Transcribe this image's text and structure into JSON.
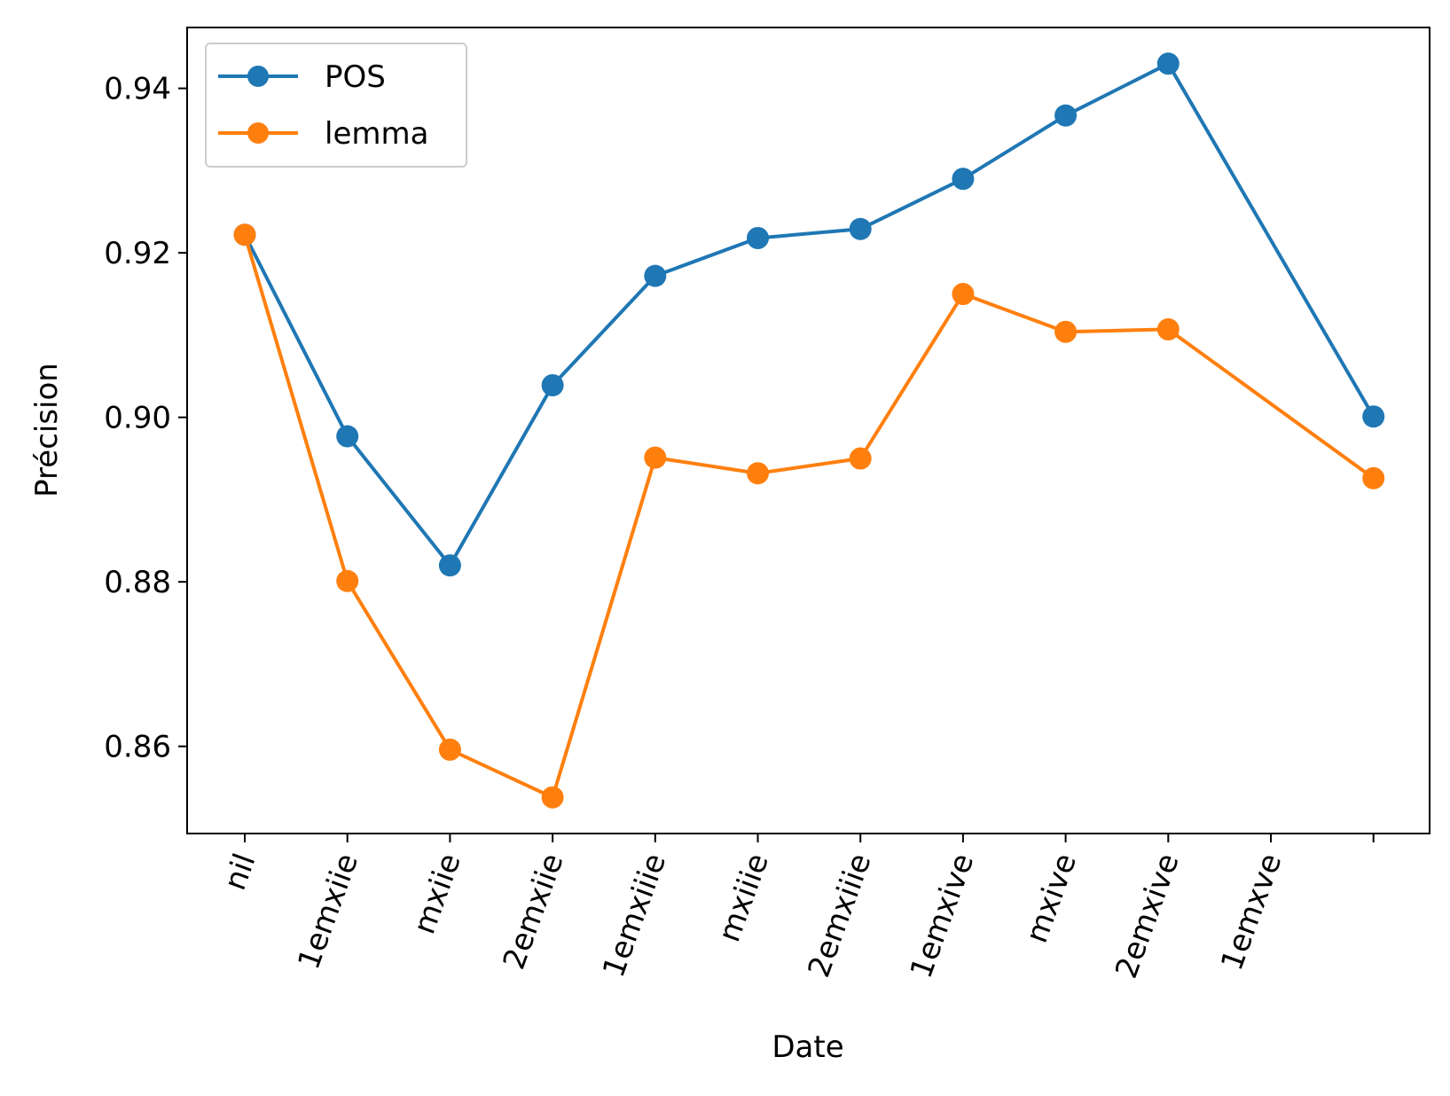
{
  "chart_data": {
    "type": "line",
    "title": "",
    "xlabel": "Date",
    "ylabel": "Précision",
    "categories": [
      "nil",
      "1emxiie",
      "mxiie",
      "2emxiie",
      "1emxiiie",
      "mxiiie",
      "2emxiiie",
      "1emxive",
      "mxive",
      "2emxive",
      "1emxve",
      ""
    ],
    "series": [
      {
        "name": "POS",
        "color": "#1f77b4",
        "values": [
          0.9222,
          0.8977,
          0.882,
          0.9039,
          0.9172,
          0.9218,
          0.9229,
          0.929,
          0.9367,
          0.943,
          null,
          0.9001
        ]
      },
      {
        "name": "lemma",
        "color": "#ff7f0e",
        "values": [
          0.9222,
          0.8801,
          0.8596,
          0.8538,
          0.8951,
          0.8932,
          0.895,
          0.915,
          0.9104,
          0.9107,
          null,
          0.8926
        ]
      }
    ],
    "ylim": [
      0.8494,
      0.9474
    ],
    "yticks": [
      "0.86",
      "0.88",
      "0.90",
      "0.92",
      "0.94"
    ],
    "grid": false,
    "legend_position": "top-left"
  }
}
